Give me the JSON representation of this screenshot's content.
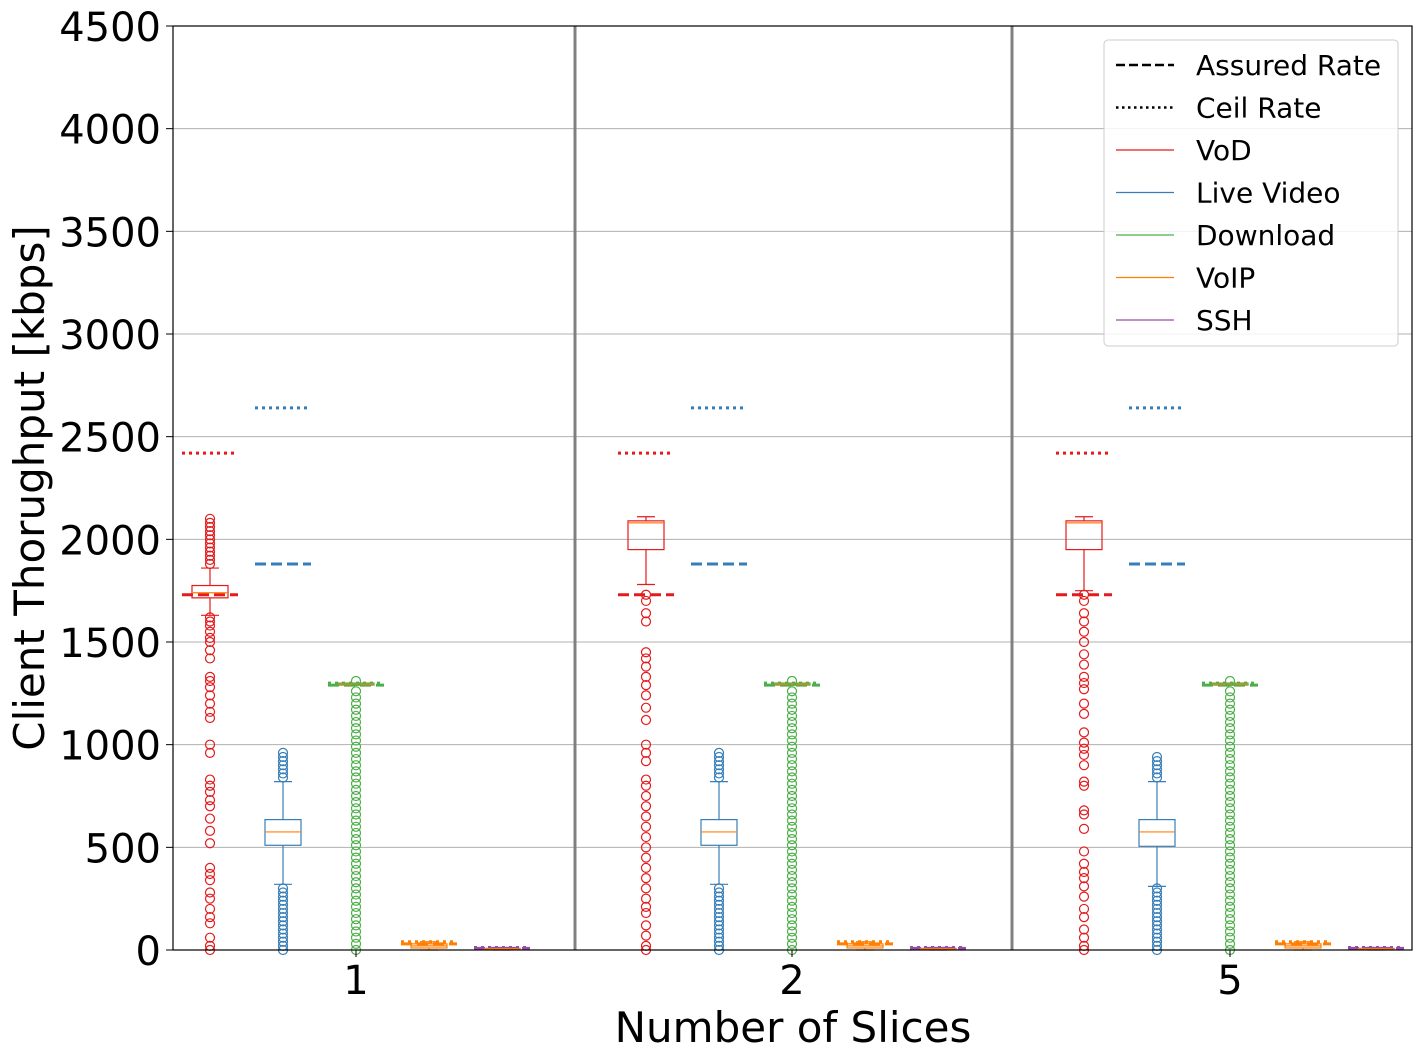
{
  "chart_data": {
    "type": "box",
    "xlabel": "Number of Slices",
    "ylabel": "Client Thorughput [kbps]",
    "ylim": [
      0,
      4500
    ],
    "yticks": [
      0,
      500,
      1000,
      1500,
      2000,
      2500,
      3000,
      3500,
      4000,
      4500
    ],
    "categories": [
      "1",
      "2",
      "5"
    ],
    "grid": "horizontal",
    "legend_position": "top-right",
    "legend": [
      {
        "label": "Assured Rate",
        "style": "dashed",
        "color": "#000000"
      },
      {
        "label": "Ceil Rate",
        "style": "dotted",
        "color": "#000000"
      },
      {
        "label": "VoD",
        "style": "solid",
        "color": "#e41a1c"
      },
      {
        "label": "Live Video",
        "style": "solid",
        "color": "#377eb8"
      },
      {
        "label": "Download",
        "style": "solid",
        "color": "#4daf4a"
      },
      {
        "label": "VoIP",
        "style": "solid",
        "color": "#ff7f00"
      },
      {
        "label": "SSH",
        "style": "solid",
        "color": "#984ea3"
      }
    ],
    "series": [
      {
        "name": "VoD",
        "color": "#e41a1c",
        "assured": 1730,
        "ceil": 2420,
        "boxes": [
          {
            "category": "1",
            "whisker_low": 1630,
            "q1": 1715,
            "median": 1740,
            "q3": 1775,
            "whisker_high": 1860,
            "outliers_low": [
              0,
              20,
              60,
              130,
              160,
              200,
              250,
              280,
              340,
              370,
              400,
              520,
              580,
              640,
              700,
              730,
              770,
              800,
              830,
              960,
              1000,
              1130,
              1160,
              1200,
              1240,
              1280,
              1310,
              1330,
              1420,
              1460,
              1500,
              1520,
              1550,
              1580,
              1600,
              1620
            ],
            "outliers_high": [
              1880,
              1900,
              1920,
              1940,
              1960,
              1980,
              2000,
              2020,
              2040,
              2060,
              2080,
              2100
            ]
          },
          {
            "category": "2",
            "whisker_low": 1780,
            "q1": 1950,
            "median": 2080,
            "q3": 2090,
            "whisker_high": 2110,
            "outliers_low": [
              0,
              20,
              70,
              120,
              180,
              210,
              250,
              300,
              350,
              400,
              450,
              500,
              550,
              600,
              650,
              700,
              750,
              800,
              830,
              920,
              960,
              1000,
              1120,
              1180,
              1240,
              1290,
              1330,
              1380,
              1420,
              1450,
              1600,
              1640,
              1700,
              1730
            ],
            "outliers_high": []
          },
          {
            "category": "5",
            "whisker_low": 1750,
            "q1": 1950,
            "median": 2080,
            "q3": 2090,
            "whisker_high": 2110,
            "outliers_low": [
              0,
              20,
              60,
              100,
              160,
              200,
              260,
              310,
              350,
              380,
              420,
              480,
              590,
              660,
              680,
              800,
              820,
              900,
              950,
              980,
              1010,
              1060,
              1150,
              1200,
              1270,
              1300,
              1330,
              1390,
              1440,
              1500,
              1550,
              1600,
              1640,
              1700,
              1730
            ],
            "outliers_high": []
          }
        ]
      },
      {
        "name": "Live Video",
        "color": "#377eb8",
        "assured": 1880,
        "ceil": 2640,
        "boxes": [
          {
            "category": "1",
            "whisker_low": 320,
            "q1": 510,
            "median": 575,
            "q3": 635,
            "whisker_high": 820,
            "outliers_low": [
              0,
              20,
              40,
              60,
              80,
              100,
              120,
              140,
              160,
              180,
              200,
              220,
              240,
              260,
              280,
              300
            ],
            "outliers_high": [
              840,
              860,
              880,
              900,
              920,
              940,
              960
            ]
          },
          {
            "category": "2",
            "whisker_low": 320,
            "q1": 510,
            "median": 575,
            "q3": 635,
            "whisker_high": 820,
            "outliers_low": [
              0,
              20,
              40,
              60,
              80,
              100,
              120,
              140,
              160,
              180,
              200,
              220,
              240,
              260,
              280,
              300
            ],
            "outliers_high": [
              840,
              860,
              880,
              900,
              920,
              940,
              960
            ]
          },
          {
            "category": "5",
            "whisker_low": 310,
            "q1": 505,
            "median": 575,
            "q3": 635,
            "whisker_high": 820,
            "outliers_low": [
              0,
              20,
              40,
              60,
              80,
              100,
              120,
              140,
              160,
              180,
              200,
              220,
              240,
              260,
              280,
              300
            ],
            "outliers_high": [
              840,
              860,
              880,
              900,
              920,
              940
            ]
          }
        ]
      },
      {
        "name": "Download",
        "color": "#4daf4a",
        "assured": 1290,
        "ceil": 1300,
        "boxes": [
          {
            "category": "1",
            "whisker_low": 1290,
            "q1": 1290,
            "median": 1295,
            "q3": 1300,
            "whisker_high": 1300,
            "outliers_low": [
              0,
              30,
              60,
              90,
              120,
              150,
              180,
              210,
              240,
              270,
              300,
              330,
              360,
              390,
              420,
              450,
              480,
              510,
              540,
              570,
              600,
              630,
              660,
              690,
              720,
              750,
              780,
              810,
              840,
              870,
              900,
              930,
              960,
              990,
              1020,
              1050,
              1080,
              1110,
              1140,
              1170,
              1200,
              1230,
              1260
            ],
            "outliers_high": [
              1310
            ]
          },
          {
            "category": "2",
            "whisker_low": 1290,
            "q1": 1290,
            "median": 1295,
            "q3": 1300,
            "whisker_high": 1300,
            "outliers_low": [
              0,
              30,
              60,
              90,
              120,
              150,
              180,
              210,
              240,
              270,
              300,
              330,
              360,
              390,
              420,
              450,
              480,
              510,
              540,
              570,
              600,
              630,
              660,
              690,
              720,
              750,
              780,
              810,
              840,
              870,
              900,
              930,
              960,
              990,
              1020,
              1050,
              1080,
              1110,
              1140,
              1170,
              1200,
              1230,
              1260
            ],
            "outliers_high": [
              1310
            ]
          },
          {
            "category": "5",
            "whisker_low": 1290,
            "q1": 1290,
            "median": 1295,
            "q3": 1300,
            "whisker_high": 1300,
            "outliers_low": [
              0,
              30,
              60,
              90,
              120,
              150,
              180,
              210,
              240,
              270,
              300,
              330,
              360,
              390,
              420,
              450,
              480,
              510,
              540,
              570,
              600,
              630,
              660,
              690,
              720,
              750,
              780,
              810,
              840,
              870,
              900,
              930,
              960,
              990,
              1020,
              1050,
              1080,
              1110,
              1140,
              1170,
              1200,
              1230,
              1260
            ],
            "outliers_high": [
              1310
            ]
          }
        ]
      },
      {
        "name": "VoIP",
        "color": "#ff7f00",
        "assured": 30,
        "ceil": 40,
        "boxes": [
          {
            "category": "1",
            "whisker_low": 0,
            "q1": 10,
            "median": 20,
            "q3": 30,
            "whisker_high": 40,
            "outliers_low": [],
            "outliers_high": []
          },
          {
            "category": "2",
            "whisker_low": 0,
            "q1": 10,
            "median": 20,
            "q3": 30,
            "whisker_high": 40,
            "outliers_low": [],
            "outliers_high": []
          },
          {
            "category": "5",
            "whisker_low": 0,
            "q1": 10,
            "median": 20,
            "q3": 30,
            "whisker_high": 40,
            "outliers_low": [],
            "outliers_high": []
          }
        ]
      },
      {
        "name": "SSH",
        "color": "#984ea3",
        "assured": 8,
        "ceil": 12,
        "boxes": [
          {
            "category": "1",
            "whisker_low": 0,
            "q1": 4,
            "median": 6,
            "q3": 8,
            "whisker_high": 12,
            "outliers_low": [],
            "outliers_high": []
          },
          {
            "category": "2",
            "whisker_low": 0,
            "q1": 4,
            "median": 6,
            "q3": 8,
            "whisker_high": 12,
            "outliers_low": [],
            "outliers_high": []
          },
          {
            "category": "5",
            "whisker_low": 0,
            "q1": 4,
            "median": 6,
            "q3": 8,
            "whisker_high": 12,
            "outliers_low": [],
            "outliers_high": []
          }
        ]
      }
    ]
  }
}
